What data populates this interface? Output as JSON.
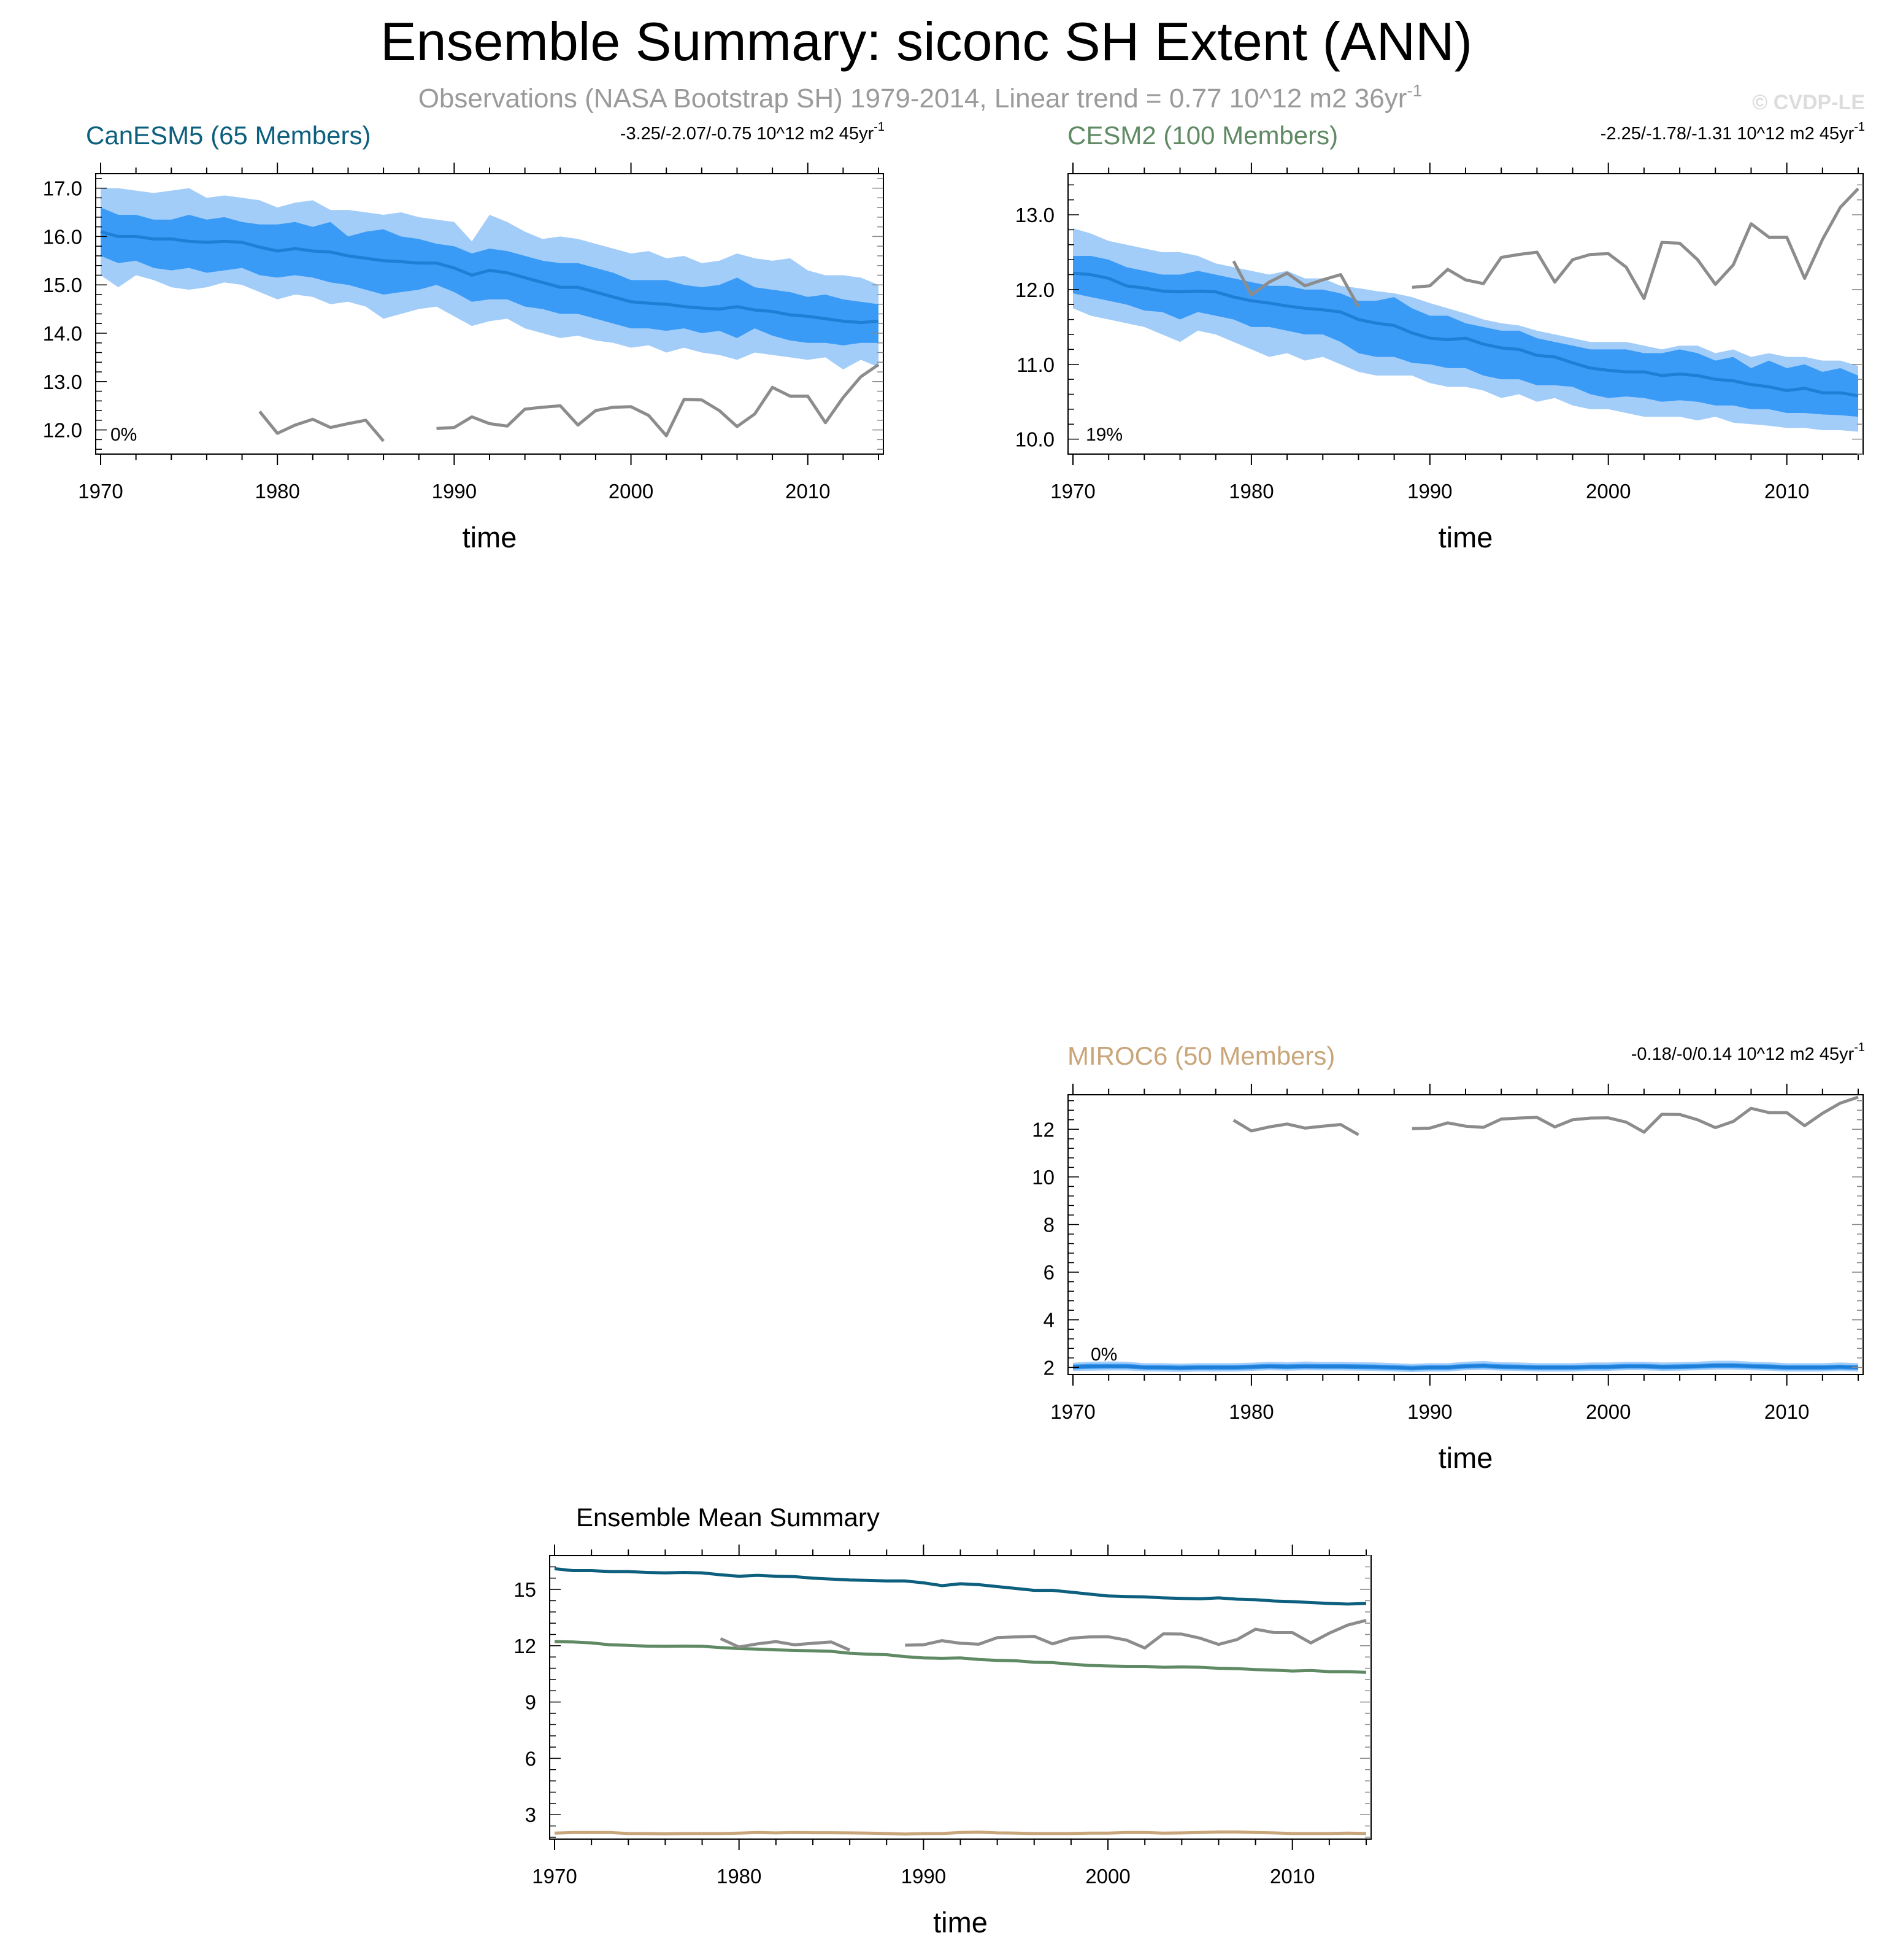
{
  "title": "Ensemble Summary: siconc SH Extent (ANN)",
  "subtitle": "Observations (NASA Bootstrap SH) 1979-2014, Linear trend = 0.77 10^12 m2 36yr",
  "subtitle_sup": "-1",
  "credit": "© CVDP-LE",
  "colors": {
    "band_outer": "#a3cdf9",
    "band_inner": "#3a9bf7",
    "mean_line": "#1f7fd6",
    "obs_line": "#8c8c8c",
    "canesm5": "#0d5f7e",
    "cesm2": "#5f8a64",
    "miroc6": "#c9a57a"
  },
  "chart_data": [
    {
      "id": "canesm5",
      "type": "area",
      "title": "CanESM5 (65 Members)",
      "title_color": "#0d5f7e",
      "trend_text": "-3.25/-2.07/-0.75 10^12 m2 45yr",
      "trend_sup": "-1",
      "percent_label": "0%",
      "xlabel": "time",
      "xlim": [
        1970,
        2014
      ],
      "ylim": [
        11.5,
        17.3
      ],
      "yticks": [
        "17.0",
        "16.0",
        "15.0",
        "14.0",
        "13.0",
        "12.0"
      ],
      "ytick_values": [
        17,
        16,
        15,
        14,
        13,
        12
      ],
      "xticks": [
        "1970",
        "1980",
        "1990",
        "2000",
        "2010"
      ],
      "xtick_values": [
        1970,
        1980,
        1990,
        2000,
        2010
      ],
      "start_year": 1970,
      "mean": [
        16.1,
        16.0,
        16.0,
        15.95,
        15.95,
        15.9,
        15.88,
        15.9,
        15.88,
        15.78,
        15.7,
        15.75,
        15.7,
        15.68,
        15.6,
        15.55,
        15.5,
        15.48,
        15.45,
        15.45,
        15.35,
        15.2,
        15.3,
        15.25,
        15.15,
        15.05,
        14.95,
        14.95,
        14.85,
        14.75,
        14.65,
        14.62,
        14.6,
        14.55,
        14.52,
        14.5,
        14.55,
        14.48,
        14.45,
        14.38,
        14.35,
        14.3,
        14.25,
        14.22,
        14.25
      ],
      "inner_low": [
        15.6,
        15.45,
        15.5,
        15.35,
        15.3,
        15.35,
        15.25,
        15.3,
        15.35,
        15.2,
        15.15,
        15.2,
        15.15,
        15.05,
        15.0,
        14.9,
        14.8,
        14.85,
        14.9,
        15.0,
        14.85,
        14.65,
        14.7,
        14.7,
        14.55,
        14.5,
        14.4,
        14.4,
        14.3,
        14.2,
        14.1,
        14.1,
        14.05,
        14.1,
        14.0,
        14.05,
        13.9,
        14.1,
        13.95,
        13.85,
        13.8,
        13.8,
        13.75,
        13.8,
        13.8
      ],
      "inner_high": [
        16.6,
        16.45,
        16.45,
        16.35,
        16.35,
        16.45,
        16.35,
        16.4,
        16.3,
        16.25,
        16.25,
        16.3,
        16.2,
        16.3,
        16.0,
        16.1,
        16.15,
        16.0,
        15.95,
        15.85,
        15.8,
        15.65,
        15.75,
        15.7,
        15.6,
        15.5,
        15.45,
        15.45,
        15.35,
        15.25,
        15.1,
        15.1,
        15.1,
        15.0,
        14.95,
        15.0,
        15.15,
        14.95,
        14.9,
        14.85,
        14.75,
        14.8,
        14.7,
        14.65,
        14.6
      ],
      "outer_low": [
        15.2,
        14.95,
        15.2,
        15.1,
        14.95,
        14.9,
        14.95,
        15.05,
        15.0,
        14.85,
        14.7,
        14.8,
        14.75,
        14.6,
        14.65,
        14.55,
        14.3,
        14.4,
        14.5,
        14.55,
        14.35,
        14.15,
        14.25,
        14.3,
        14.1,
        14.0,
        13.9,
        13.95,
        13.85,
        13.8,
        13.7,
        13.75,
        13.6,
        13.7,
        13.6,
        13.55,
        13.45,
        13.6,
        13.55,
        13.5,
        13.45,
        13.5,
        13.25,
        13.45,
        13.3
      ],
      "outer_high": [
        17.0,
        17.0,
        16.95,
        16.9,
        16.95,
        17.0,
        16.8,
        16.85,
        16.8,
        16.75,
        16.6,
        16.7,
        16.75,
        16.55,
        16.55,
        16.5,
        16.45,
        16.5,
        16.4,
        16.35,
        16.3,
        15.9,
        16.45,
        16.3,
        16.1,
        15.95,
        16.0,
        15.95,
        15.85,
        15.75,
        15.65,
        15.7,
        15.55,
        15.6,
        15.45,
        15.5,
        15.65,
        15.55,
        15.5,
        15.55,
        15.3,
        15.2,
        15.2,
        15.15,
        15.0
      ],
      "show_obs": true
    },
    {
      "id": "cesm2",
      "type": "area",
      "title": "CESM2 (100 Members)",
      "title_color": "#5f8a64",
      "trend_text": "-2.25/-1.78/-1.31 10^12 m2 45yr",
      "trend_sup": "-1",
      "percent_label": "19%",
      "xlabel": "time",
      "xlim": [
        1970,
        2014
      ],
      "ylim": [
        9.8,
        13.55
      ],
      "yticks": [
        "13.0",
        "12.0",
        "11.0",
        "10.0"
      ],
      "ytick_values": [
        13,
        12,
        11,
        10
      ],
      "xticks": [
        "1970",
        "1980",
        "1990",
        "2000",
        "2010"
      ],
      "xtick_values": [
        1970,
        1980,
        1990,
        2000,
        2010
      ],
      "start_year": 1970,
      "mean": [
        12.22,
        12.2,
        12.15,
        12.05,
        12.02,
        11.98,
        11.97,
        11.98,
        11.97,
        11.9,
        11.85,
        11.82,
        11.78,
        11.75,
        11.73,
        11.7,
        11.6,
        11.55,
        11.52,
        11.42,
        11.35,
        11.33,
        11.35,
        11.27,
        11.22,
        11.2,
        11.12,
        11.1,
        11.02,
        10.95,
        10.92,
        10.9,
        10.9,
        10.85,
        10.87,
        10.85,
        10.8,
        10.78,
        10.73,
        10.7,
        10.65,
        10.68,
        10.62,
        10.62,
        10.58
      ],
      "inner_low": [
        11.95,
        11.9,
        11.85,
        11.8,
        11.72,
        11.7,
        11.6,
        11.7,
        11.65,
        11.6,
        11.5,
        11.5,
        11.45,
        11.4,
        11.4,
        11.3,
        11.15,
        11.1,
        11.1,
        11.02,
        11.0,
        10.95,
        10.95,
        10.85,
        10.8,
        10.8,
        10.72,
        10.72,
        10.7,
        10.6,
        10.55,
        10.57,
        10.55,
        10.5,
        10.52,
        10.5,
        10.45,
        10.45,
        10.4,
        10.4,
        10.35,
        10.35,
        10.33,
        10.32,
        10.3
      ],
      "inner_high": [
        12.45,
        12.45,
        12.4,
        12.3,
        12.25,
        12.2,
        12.2,
        12.25,
        12.2,
        12.15,
        12.1,
        12.05,
        12.05,
        12.0,
        12.0,
        11.95,
        11.85,
        11.85,
        11.9,
        11.75,
        11.65,
        11.65,
        11.55,
        11.5,
        11.45,
        11.45,
        11.35,
        11.3,
        11.25,
        11.2,
        11.2,
        11.2,
        11.15,
        11.15,
        11.2,
        11.15,
        11.05,
        11.1,
        10.95,
        11.05,
        10.95,
        11.0,
        10.9,
        10.95,
        10.85
      ],
      "outer_low": [
        11.75,
        11.65,
        11.6,
        11.55,
        11.5,
        11.4,
        11.3,
        11.45,
        11.4,
        11.3,
        11.2,
        11.1,
        11.15,
        11.05,
        11.1,
        11.0,
        10.9,
        10.85,
        10.85,
        10.85,
        10.75,
        10.7,
        10.7,
        10.65,
        10.55,
        10.6,
        10.5,
        10.55,
        10.45,
        10.4,
        10.4,
        10.35,
        10.3,
        10.3,
        10.3,
        10.25,
        10.3,
        10.22,
        10.2,
        10.18,
        10.15,
        10.15,
        10.12,
        10.12,
        10.1
      ],
      "outer_high": [
        12.82,
        12.75,
        12.65,
        12.6,
        12.55,
        12.5,
        12.5,
        12.45,
        12.35,
        12.3,
        12.25,
        12.2,
        12.25,
        12.15,
        12.15,
        12.05,
        12.02,
        11.98,
        11.95,
        11.9,
        11.82,
        11.75,
        11.68,
        11.6,
        11.55,
        11.52,
        11.45,
        11.4,
        11.35,
        11.3,
        11.3,
        11.3,
        11.25,
        11.2,
        11.25,
        11.25,
        11.15,
        11.2,
        11.1,
        11.15,
        11.1,
        11.1,
        11.05,
        11.05,
        10.98
      ],
      "show_obs": true
    },
    {
      "id": "miroc6",
      "type": "area",
      "title": "MIROC6 (50 Members)",
      "title_color": "#c9a57a",
      "trend_text": "-0.18/-0/0.14 10^12 m2 45yr",
      "trend_sup": "-1",
      "percent_label": "0%",
      "xlabel": "time",
      "xlim": [
        1970,
        2014
      ],
      "ylim": [
        1.7,
        13.45
      ],
      "yticks": [
        "12",
        "10",
        "8",
        "6",
        "4",
        "2"
      ],
      "ytick_values": [
        12,
        10,
        8,
        6,
        4,
        2
      ],
      "xticks": [
        "1970",
        "1980",
        "1990",
        "2000",
        "2010"
      ],
      "xtick_values": [
        1970,
        1980,
        1990,
        2000,
        2010
      ],
      "start_year": 1970,
      "mean": [
        2.02,
        2.05,
        2.05,
        2.05,
        2.0,
        2.0,
        1.98,
        2.0,
        2.0,
        2.0,
        2.02,
        2.05,
        2.03,
        2.05,
        2.04,
        2.04,
        2.03,
        2.02,
        2.0,
        1.97,
        2.0,
        2.0,
        2.05,
        2.07,
        2.03,
        2.02,
        2.0,
        2.0,
        2.0,
        2.02,
        2.02,
        2.05,
        2.05,
        2.02,
        2.03,
        2.05,
        2.08,
        2.08,
        2.05,
        2.03,
        2.0,
        2.0,
        2.0,
        2.02,
        2.0
      ],
      "inner_low": [
        1.92,
        1.94,
        1.95,
        1.95,
        1.91,
        1.9,
        1.88,
        1.9,
        1.9,
        1.9,
        1.92,
        1.95,
        1.93,
        1.95,
        1.94,
        1.94,
        1.93,
        1.92,
        1.9,
        1.87,
        1.9,
        1.9,
        1.95,
        1.97,
        1.93,
        1.92,
        1.9,
        1.9,
        1.9,
        1.92,
        1.92,
        1.95,
        1.95,
        1.92,
        1.93,
        1.95,
        1.98,
        1.98,
        1.95,
        1.93,
        1.9,
        1.9,
        1.9,
        1.92,
        1.9
      ],
      "inner_high": [
        2.12,
        2.15,
        2.15,
        2.15,
        2.1,
        2.1,
        2.08,
        2.1,
        2.1,
        2.1,
        2.12,
        2.15,
        2.13,
        2.15,
        2.14,
        2.14,
        2.13,
        2.12,
        2.1,
        2.07,
        2.1,
        2.1,
        2.15,
        2.17,
        2.13,
        2.12,
        2.1,
        2.1,
        2.1,
        2.12,
        2.12,
        2.15,
        2.15,
        2.12,
        2.13,
        2.15,
        2.18,
        2.18,
        2.15,
        2.13,
        2.1,
        2.1,
        2.1,
        2.12,
        2.1
      ],
      "outer_low": [
        1.85,
        1.86,
        1.87,
        1.87,
        1.84,
        1.83,
        1.81,
        1.83,
        1.83,
        1.83,
        1.85,
        1.88,
        1.86,
        1.88,
        1.87,
        1.87,
        1.86,
        1.85,
        1.83,
        1.8,
        1.83,
        1.83,
        1.88,
        1.9,
        1.86,
        1.85,
        1.83,
        1.83,
        1.83,
        1.85,
        1.85,
        1.88,
        1.88,
        1.85,
        1.86,
        1.88,
        1.91,
        1.91,
        1.88,
        1.86,
        1.83,
        1.83,
        1.83,
        1.85,
        1.83
      ],
      "outer_high": [
        2.2,
        2.24,
        2.25,
        2.24,
        2.18,
        2.18,
        2.16,
        2.18,
        2.18,
        2.18,
        2.2,
        2.24,
        2.22,
        2.25,
        2.23,
        2.23,
        2.22,
        2.21,
        2.18,
        2.15,
        2.18,
        2.18,
        2.24,
        2.27,
        2.22,
        2.21,
        2.18,
        2.18,
        2.18,
        2.21,
        2.21,
        2.24,
        2.24,
        2.21,
        2.22,
        2.24,
        2.28,
        2.28,
        2.24,
        2.22,
        2.18,
        2.18,
        2.18,
        2.21,
        2.18
      ],
      "show_obs": true
    },
    {
      "id": "ensemble_mean_summary",
      "type": "line",
      "title": "Ensemble Mean Summary",
      "xlabel": "time",
      "xlim": [
        1970,
        2014
      ],
      "ylim": [
        1.7,
        16.8
      ],
      "yticks": [
        "15",
        "12",
        "9",
        "6",
        "3"
      ],
      "ytick_values": [
        15,
        12,
        9,
        6,
        3
      ],
      "xticks": [
        "1970",
        "1980",
        "1990",
        "2000",
        "2010"
      ],
      "xtick_values": [
        1970,
        1980,
        1990,
        2000,
        2010
      ],
      "series_refs": [
        "canesm5",
        "cesm2",
        "miroc6"
      ]
    }
  ],
  "observations": {
    "name": "NASA Bootstrap SH",
    "years": [
      1979,
      1980,
      1981,
      1982,
      1983,
      1984,
      1985,
      1986,
      1989,
      1990,
      1991,
      1992,
      1993,
      1994,
      1995,
      1996,
      1997,
      1998,
      1999,
      2000,
      2001,
      2002,
      2003,
      2004,
      2005,
      2006,
      2007,
      2008,
      2009,
      2010,
      2011,
      2012,
      2013,
      2014
    ],
    "values": [
      12.38,
      11.93,
      12.1,
      12.22,
      12.05,
      12.13,
      12.2,
      11.77,
      12.03,
      12.05,
      12.27,
      12.13,
      12.08,
      12.43,
      12.47,
      12.5,
      12.1,
      12.4,
      12.47,
      12.48,
      12.3,
      11.88,
      12.63,
      12.62,
      12.4,
      12.07,
      12.33,
      12.88,
      12.7,
      12.7,
      12.15,
      12.67,
      13.1,
      13.35
    ]
  }
}
